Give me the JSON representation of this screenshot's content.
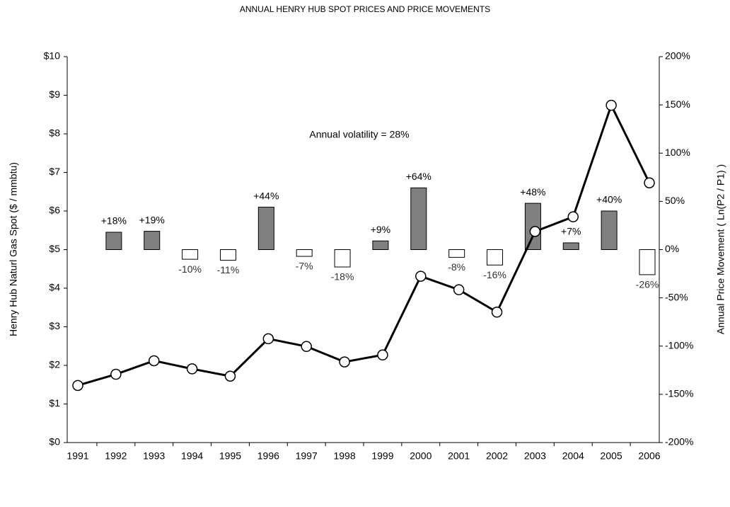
{
  "chart_data": {
    "type": "line_bar",
    "title": "ANNUAL HENRY HUB SPOT PRICES AND PRICE MOVEMENTS",
    "ylabel": "Henry Hub Naturl Gas Spot ($ / mmbtu)",
    "y2label": "Annual Price Movement ( Ln(P2 / P1) )",
    "annotation": "Annual volatility = 28%",
    "categories": [
      "1991",
      "1992",
      "1993",
      "1994",
      "1995",
      "1996",
      "1997",
      "1998",
      "1999",
      "2000",
      "2001",
      "2002",
      "2003",
      "2004",
      "2005",
      "2006"
    ],
    "series": [
      {
        "name": "Henry Hub Spot",
        "type": "line",
        "color": "#000000",
        "axis": "y",
        "values": [
          1.48,
          1.77,
          2.12,
          1.91,
          1.72,
          2.69,
          2.49,
          2.09,
          2.27,
          4.31,
          3.96,
          3.38,
          5.47,
          5.85,
          8.74,
          6.73
        ]
      },
      {
        "name": "Annual Price Movement",
        "type": "bar",
        "color": "#808080",
        "negative_color": "#ffffff",
        "axis": "y2",
        "values": [
          null,
          18,
          19,
          -10,
          -11,
          44,
          -7,
          -18,
          9,
          64,
          -8,
          -16,
          48,
          7,
          40,
          -26
        ],
        "value_labels": [
          null,
          "+18%",
          "+19%",
          "-10%",
          "-11%",
          "+44%",
          "-7%",
          "-18%",
          "+9%",
          "+64%",
          "-8%",
          "-16%",
          "+48%",
          "+7%",
          "+40%",
          "-26%"
        ]
      }
    ],
    "ylim": [
      0,
      10
    ],
    "yticks": [
      {
        "value": 0,
        "label": "$0"
      },
      {
        "value": 1,
        "label": "$1"
      },
      {
        "value": 2,
        "label": "$2"
      },
      {
        "value": 3,
        "label": "$3"
      },
      {
        "value": 4,
        "label": "$4"
      },
      {
        "value": 5,
        "label": "$5"
      },
      {
        "value": 6,
        "label": "$6"
      },
      {
        "value": 7,
        "label": "$7"
      },
      {
        "value": 8,
        "label": "$8"
      },
      {
        "value": 9,
        "label": "$9"
      },
      {
        "value": 10,
        "label": "$10"
      }
    ],
    "y2lim": [
      -200,
      200
    ],
    "y2ticks": [
      {
        "value": -200,
        "label": "-200%"
      },
      {
        "value": -150,
        "label": "-150%"
      },
      {
        "value": -100,
        "label": "-100%"
      },
      {
        "value": -50,
        "label": "-50%"
      },
      {
        "value": 0,
        "label": "0%"
      },
      {
        "value": 50,
        "label": "50%"
      },
      {
        "value": 100,
        "label": "100%"
      },
      {
        "value": 150,
        "label": "150%"
      },
      {
        "value": 200,
        "label": "200%"
      }
    ],
    "grid": false
  }
}
